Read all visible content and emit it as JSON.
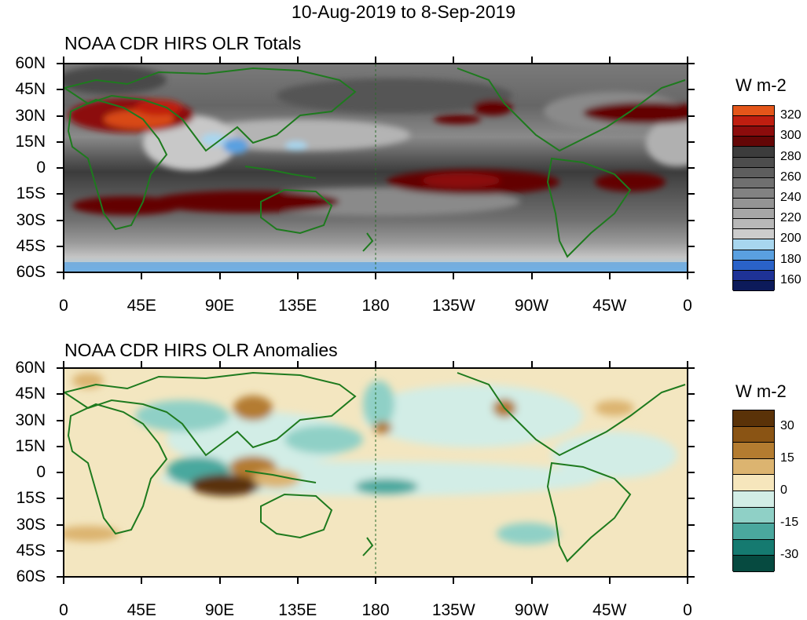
{
  "title": "10-Aug-2019 to 8-Sep-2019",
  "lat_labels": [
    "60N",
    "45N",
    "30N",
    "15N",
    "0",
    "15S",
    "30S",
    "45S",
    "60S"
  ],
  "lon_labels": [
    "0",
    "45E",
    "90E",
    "135E",
    "180",
    "135W",
    "90W",
    "45W",
    "0"
  ],
  "panels": [
    {
      "title": "NOAA CDR HIRS OLR Totals",
      "colorbar": {
        "units": "W m-2",
        "colors": [
          "#e4561a",
          "#bf1e10",
          "#8c0c0c",
          "#640606",
          "#3c3c3c",
          "#4d4d4d",
          "#5e5e5e",
          "#707070",
          "#828282",
          "#949494",
          "#a6a6a6",
          "#b8b8b8",
          "#cccccc",
          "#a8d6ee",
          "#5aa0e0",
          "#2a62c8",
          "#1e3296",
          "#0c1a5a"
        ],
        "labels": [
          "320",
          "300",
          "280",
          "260",
          "240",
          "220",
          "200",
          "180",
          "160"
        ]
      }
    },
    {
      "title": "NOAA CDR HIRS OLR Anomalies",
      "colorbar": {
        "units": "W m-2",
        "colors": [
          "#5a3208",
          "#8a5414",
          "#b47c30",
          "#dcb470",
          "#f6e6bc",
          "#d2ede6",
          "#8fd0c6",
          "#4aa89e",
          "#157a70",
          "#064a40"
        ],
        "labels": [
          "30",
          "15",
          "0",
          "-15",
          "-30"
        ]
      }
    }
  ]
}
